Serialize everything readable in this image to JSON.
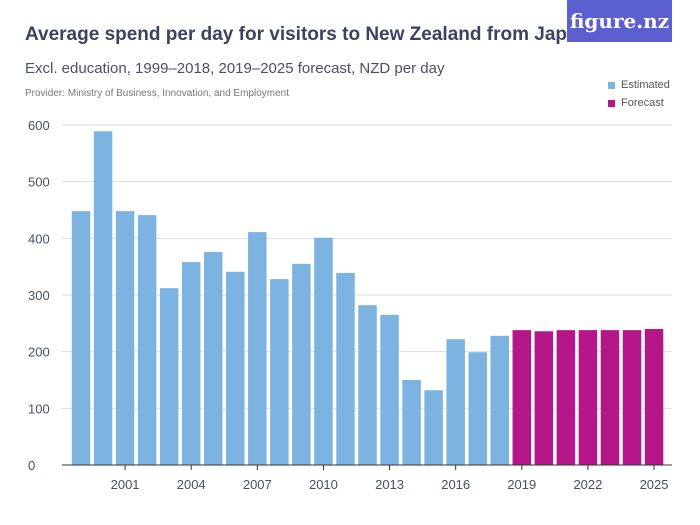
{
  "header": {
    "title": "Average spend per day for visitors to New Zealand from Japan",
    "subtitle": "Excl. education, 1999–2018, 2019–2025 forecast, NZD per day",
    "provider": "Provider: Ministry of Business, Innovation, and Employment",
    "logo": "figure.nz"
  },
  "chart_data": {
    "type": "bar",
    "title": "Average spend per day for visitors to New Zealand from Japan",
    "ylim": [
      0,
      600
    ],
    "grid": true,
    "legend_placement": "top-right",
    "y_ticks": [
      "0",
      "100",
      "200",
      "300",
      "400",
      "500",
      "600"
    ],
    "x_ticks": [
      "2001",
      "2004",
      "2007",
      "2010",
      "2013",
      "2016",
      "2019",
      "2022",
      "2025"
    ],
    "categories": [
      1999,
      2000,
      2001,
      2002,
      2003,
      2004,
      2005,
      2006,
      2007,
      2008,
      2009,
      2010,
      2011,
      2012,
      2013,
      2014,
      2015,
      2016,
      2017,
      2018,
      2019,
      2020,
      2021,
      2022,
      2023,
      2024,
      2025
    ],
    "series": [
      {
        "name": "Estimated",
        "color": "#7db3e1",
        "values": [
          448,
          589,
          448,
          441,
          312,
          358,
          376,
          341,
          411,
          328,
          355,
          401,
          339,
          282,
          265,
          150,
          132,
          222,
          199,
          228,
          null,
          null,
          null,
          null,
          null,
          null,
          null
        ]
      },
      {
        "name": "Forecast",
        "color": "#b5168a",
        "values": [
          null,
          null,
          null,
          null,
          null,
          null,
          null,
          null,
          null,
          null,
          null,
          null,
          null,
          null,
          null,
          null,
          null,
          null,
          null,
          null,
          238,
          236,
          238,
          238,
          238,
          238,
          240
        ]
      }
    ]
  }
}
